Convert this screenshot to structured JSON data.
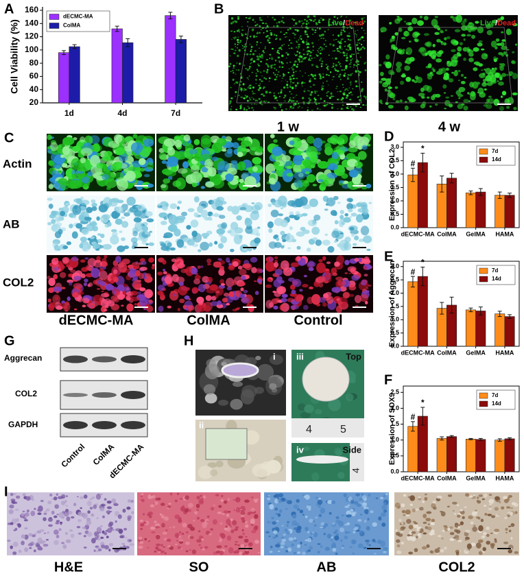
{
  "panel_labels": [
    "A",
    "B",
    "C",
    "D",
    "E",
    "F",
    "G",
    "H",
    "I"
  ],
  "chart_data": [
    {
      "type": "bar",
      "ylabel": "Cell Viability (%)",
      "categories": [
        "1d",
        "4d",
        "7d"
      ],
      "series": [
        {
          "name": "dECMC-MA",
          "color": "#9b30ff",
          "values": [
            96,
            132,
            152
          ],
          "errors": [
            3,
            4,
            5
          ]
        },
        {
          "name": "ColMA",
          "color": "#1c1ca8",
          "values": [
            105,
            111,
            116
          ],
          "errors": [
            3,
            6,
            5
          ]
        }
      ],
      "ylim": [
        20,
        160
      ],
      "yticks": [
        20,
        40,
        60,
        80,
        100,
        120,
        140,
        160
      ],
      "legend": "upper left",
      "frame": false,
      "annotations": []
    },
    {
      "type": "bar",
      "ylabel": "Expression of COL2",
      "categories": [
        "dECMC-MA",
        "ColMA",
        "GelMA",
        "HAMA"
      ],
      "series": [
        {
          "name": "7d",
          "color": "#ff8c1a",
          "values": [
            1.97,
            1.63,
            1.3,
            1.21
          ],
          "errors": [
            0.25,
            0.3,
            0.07,
            0.12
          ]
        },
        {
          "name": "14d",
          "color": "#8b0a0a",
          "values": [
            2.43,
            1.85,
            1.33,
            1.21
          ],
          "errors": [
            0.35,
            0.18,
            0.13,
            0.08
          ]
        }
      ],
      "ylim": [
        0,
        3.2
      ],
      "yticks": [
        {
          "value": 0,
          "label": "0.0"
        },
        0.5,
        {
          "value": 1,
          "label": "1.0"
        },
        1.5,
        {
          "value": 2,
          "label": "2.0"
        },
        2.5,
        {
          "value": 3,
          "label": "3.0"
        }
      ],
      "legend": "upper right",
      "frame": true,
      "annotations": [
        "#",
        "*"
      ]
    },
    {
      "type": "bar",
      "ylabel": "Expression of Aggrecan",
      "categories": [
        "dECMC-MA",
        "ColMA",
        "GelMA",
        "HAMA"
      ],
      "series": [
        {
          "name": "7d",
          "color": "#ff8c1a",
          "values": [
            2.43,
            1.43,
            1.37,
            1.22
          ],
          "errors": [
            0.2,
            0.22,
            0.07,
            0.1
          ]
        },
        {
          "name": "14d",
          "color": "#8b0a0a",
          "values": [
            2.63,
            1.55,
            1.33,
            1.12
          ],
          "errors": [
            0.35,
            0.3,
            0.15,
            0.07
          ]
        }
      ],
      "ylim": [
        0,
        3.2
      ],
      "yticks": [
        {
          "value": 0,
          "label": "0.0"
        },
        0.5,
        {
          "value": 1,
          "label": "1.0"
        },
        1.5,
        {
          "value": 2,
          "label": "2.0"
        },
        2.5,
        {
          "value": 3,
          "label": "3.0"
        }
      ],
      "legend": "upper right",
      "frame": true,
      "annotations": [
        "#",
        "*"
      ]
    },
    {
      "type": "bar",
      "ylabel": "Expression of SOX9",
      "categories": [
        "dECMC-MA",
        "ColMA",
        "GelMA",
        "HAMA"
      ],
      "series": [
        {
          "name": "7d",
          "color": "#ff8c1a",
          "values": [
            1.43,
            1.05,
            1.03,
            1.0
          ],
          "errors": [
            0.15,
            0.05,
            0.02,
            0.04
          ]
        },
        {
          "name": "14d",
          "color": "#8b0a0a",
          "values": [
            1.75,
            1.11,
            1.02,
            1.04
          ],
          "errors": [
            0.28,
            0.03,
            0.03,
            0.03
          ]
        }
      ],
      "ylim": [
        0,
        2.7
      ],
      "yticks": [
        {
          "value": 0,
          "label": "0.0"
        },
        0.5,
        {
          "value": 1,
          "label": "1.0"
        },
        1.5,
        {
          "value": 2,
          "label": "2.0"
        },
        2.5
      ],
      "legend": "upper right",
      "frame": true,
      "annotations": [
        "#",
        "*"
      ]
    }
  ],
  "live_dead": [
    "Live",
    "/",
    "Dead"
  ],
  "panel_b": {
    "timepoints": [
      "1 w",
      "4 w"
    ]
  },
  "panel_c": {
    "rows": [
      "Actin",
      "AB",
      "COL2"
    ],
    "columns": [
      "dECMC-MA",
      "ColMA",
      "Control"
    ]
  },
  "panel_g": {
    "rows": [
      "Aggrecan",
      "COL2",
      "GAPDH"
    ],
    "columns": [
      "Control",
      "ColMA",
      "dECMC-MA"
    ]
  },
  "panel_h": {
    "insets": [
      "i",
      "ii",
      "iii",
      "iv"
    ],
    "views": [
      "Top",
      "Side"
    ],
    "ruler": [
      "4",
      "5",
      "4"
    ]
  },
  "panel_i": {
    "stains": [
      "H&E",
      "SO",
      "AB",
      "COL2"
    ]
  }
}
